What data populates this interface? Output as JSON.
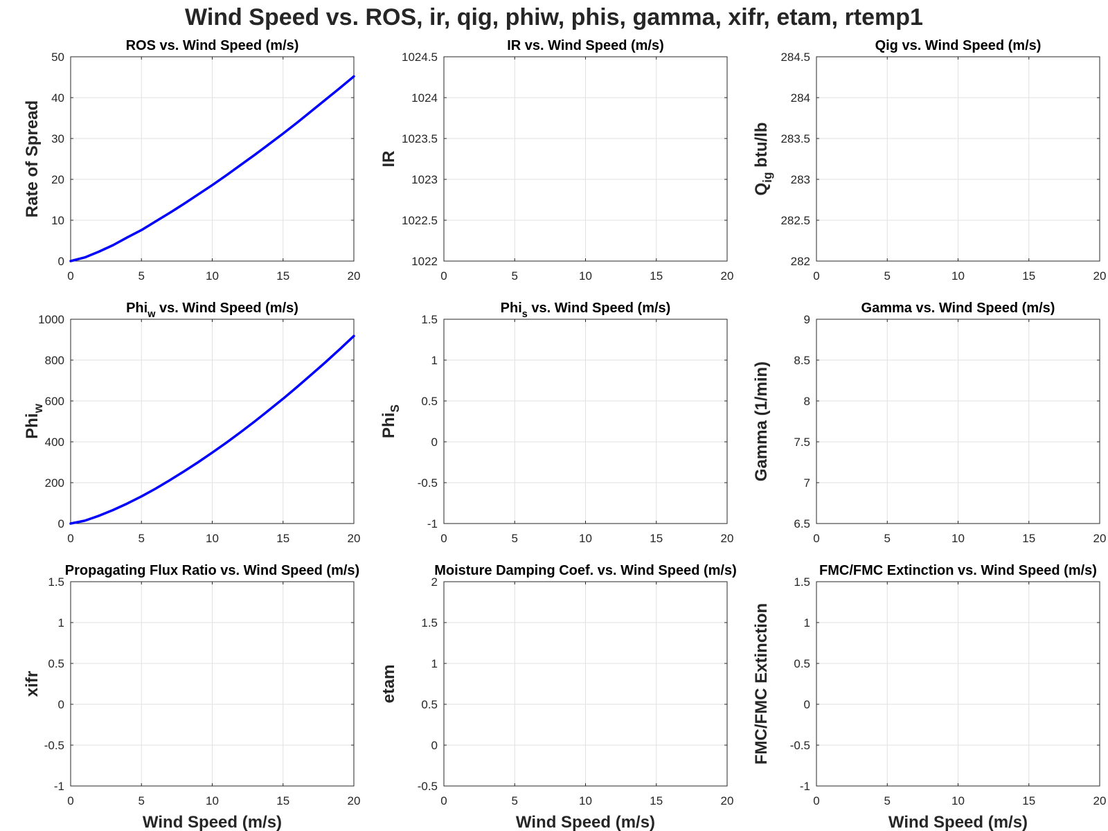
{
  "figure": {
    "suptitle": "Wind Speed vs. ROS, ir, qig, phiw, phis, gamma, xifr, etam, rtemp1",
    "line_color": "#0000ff"
  },
  "chart_data": [
    {
      "type": "line",
      "title": "ROS vs. Wind Speed (m/s)",
      "xlabel": "",
      "ylabel": "Rate of Spread",
      "xlim": [
        0,
        20
      ],
      "ylim": [
        0,
        50
      ],
      "xticks": [
        "0",
        "5",
        "10",
        "15",
        "20"
      ],
      "yticks": [
        "0",
        "10",
        "20",
        "30",
        "40",
        "50"
      ],
      "grid": true,
      "series": [
        {
          "x": [
            0,
            1,
            2,
            3,
            4,
            5,
            6,
            7,
            8,
            9,
            10,
            11,
            12,
            13,
            14,
            15,
            16,
            17,
            18,
            19,
            20
          ],
          "y": [
            0,
            0.9,
            2.3,
            3.9,
            5.8,
            7.6,
            9.7,
            11.8,
            14.0,
            16.3,
            18.6,
            21.0,
            23.5,
            26.0,
            28.6,
            31.2,
            33.9,
            36.7,
            39.5,
            42.3,
            45.2
          ]
        }
      ]
    },
    {
      "type": "line",
      "title": "IR vs. Wind Speed (m/s)",
      "xlabel": "",
      "ylabel": "IR",
      "xlim": [
        0,
        20
      ],
      "ylim": [
        1022,
        1024.5
      ],
      "xticks": [
        "0",
        "5",
        "10",
        "15",
        "20"
      ],
      "yticks": [
        "1022",
        "1022.5",
        "1023",
        "1023.5",
        "1024",
        "1024.5"
      ],
      "grid": true,
      "series": []
    },
    {
      "type": "line",
      "title": "Qig vs. Wind Speed (m/s)",
      "xlabel": "",
      "ylabel": "Q_ig btu/lb",
      "xlim": [
        0,
        20
      ],
      "ylim": [
        282,
        284.5
      ],
      "xticks": [
        "0",
        "5",
        "10",
        "15",
        "20"
      ],
      "yticks": [
        "282",
        "282.5",
        "283",
        "283.5",
        "284",
        "284.5"
      ],
      "grid": true,
      "series": []
    },
    {
      "type": "line",
      "title": "Phi_w vs. Wind Speed (m/s)",
      "xlabel": "",
      "ylabel": "Phi_w",
      "xlim": [
        0,
        20
      ],
      "ylim": [
        0,
        1000
      ],
      "xticks": [
        "0",
        "5",
        "10",
        "15",
        "20"
      ],
      "yticks": [
        "0",
        "200",
        "400",
        "600",
        "800",
        "1000"
      ],
      "grid": true,
      "series": [
        {
          "x": [
            0,
            1,
            2,
            3,
            4,
            5,
            6,
            7,
            8,
            9,
            10,
            11,
            12,
            13,
            14,
            15,
            16,
            17,
            18,
            19,
            20
          ],
          "y": [
            0,
            14,
            38,
            66,
            98,
            133,
            171,
            212,
            255,
            300,
            347,
            396,
            447,
            500,
            555,
            611,
            669,
            729,
            790,
            853,
            918
          ]
        }
      ]
    },
    {
      "type": "line",
      "title": "Phi_s vs. Wind Speed (m/s)",
      "xlabel": "",
      "ylabel": "Phi_S",
      "xlim": [
        0,
        20
      ],
      "ylim": [
        -1,
        1.5
      ],
      "xticks": [
        "0",
        "5",
        "10",
        "15",
        "20"
      ],
      "yticks": [
        "-1",
        "-0.5",
        "0",
        "0.5",
        "1",
        "1.5"
      ],
      "grid": true,
      "series": []
    },
    {
      "type": "line",
      "title": "Gamma vs. Wind Speed (m/s)",
      "xlabel": "",
      "ylabel": "Gamma (1/min)",
      "xlim": [
        0,
        20
      ],
      "ylim": [
        6.5,
        9
      ],
      "xticks": [
        "0",
        "5",
        "10",
        "15",
        "20"
      ],
      "yticks": [
        "6.5",
        "7",
        "7.5",
        "8",
        "8.5",
        "9"
      ],
      "grid": true,
      "series": []
    },
    {
      "type": "line",
      "title": "Propagating Flux Ratio vs. Wind Speed (m/s)",
      "xlabel": "Wind Speed (m/s)",
      "ylabel": "xifr",
      "xlim": [
        0,
        20
      ],
      "ylim": [
        -1,
        1.5
      ],
      "xticks": [
        "0",
        "5",
        "10",
        "15",
        "20"
      ],
      "yticks": [
        "-1",
        "-0.5",
        "0",
        "0.5",
        "1",
        "1.5"
      ],
      "grid": true,
      "series": []
    },
    {
      "type": "line",
      "title": "Moisture Damping Coef. vs. Wind Speed (m/s)",
      "xlabel": "Wind Speed (m/s)",
      "ylabel": "etam",
      "xlim": [
        0,
        20
      ],
      "ylim": [
        -0.5,
        2
      ],
      "xticks": [
        "0",
        "5",
        "10",
        "15",
        "20"
      ],
      "yticks": [
        "-0.5",
        "0",
        "0.5",
        "1",
        "1.5",
        "2"
      ],
      "grid": true,
      "series": []
    },
    {
      "type": "line",
      "title": "FMC/FMC Extinction vs. Wind Speed (m/s)",
      "xlabel": "Wind Speed (m/s)",
      "ylabel": "FMC/FMC Extinction",
      "xlim": [
        0,
        20
      ],
      "ylim": [
        -1,
        1.5
      ],
      "xticks": [
        "0",
        "5",
        "10",
        "15",
        "20"
      ],
      "yticks": [
        "-1",
        "-0.5",
        "0",
        "0.5",
        "1",
        "1.5"
      ],
      "grid": true,
      "series": []
    }
  ]
}
